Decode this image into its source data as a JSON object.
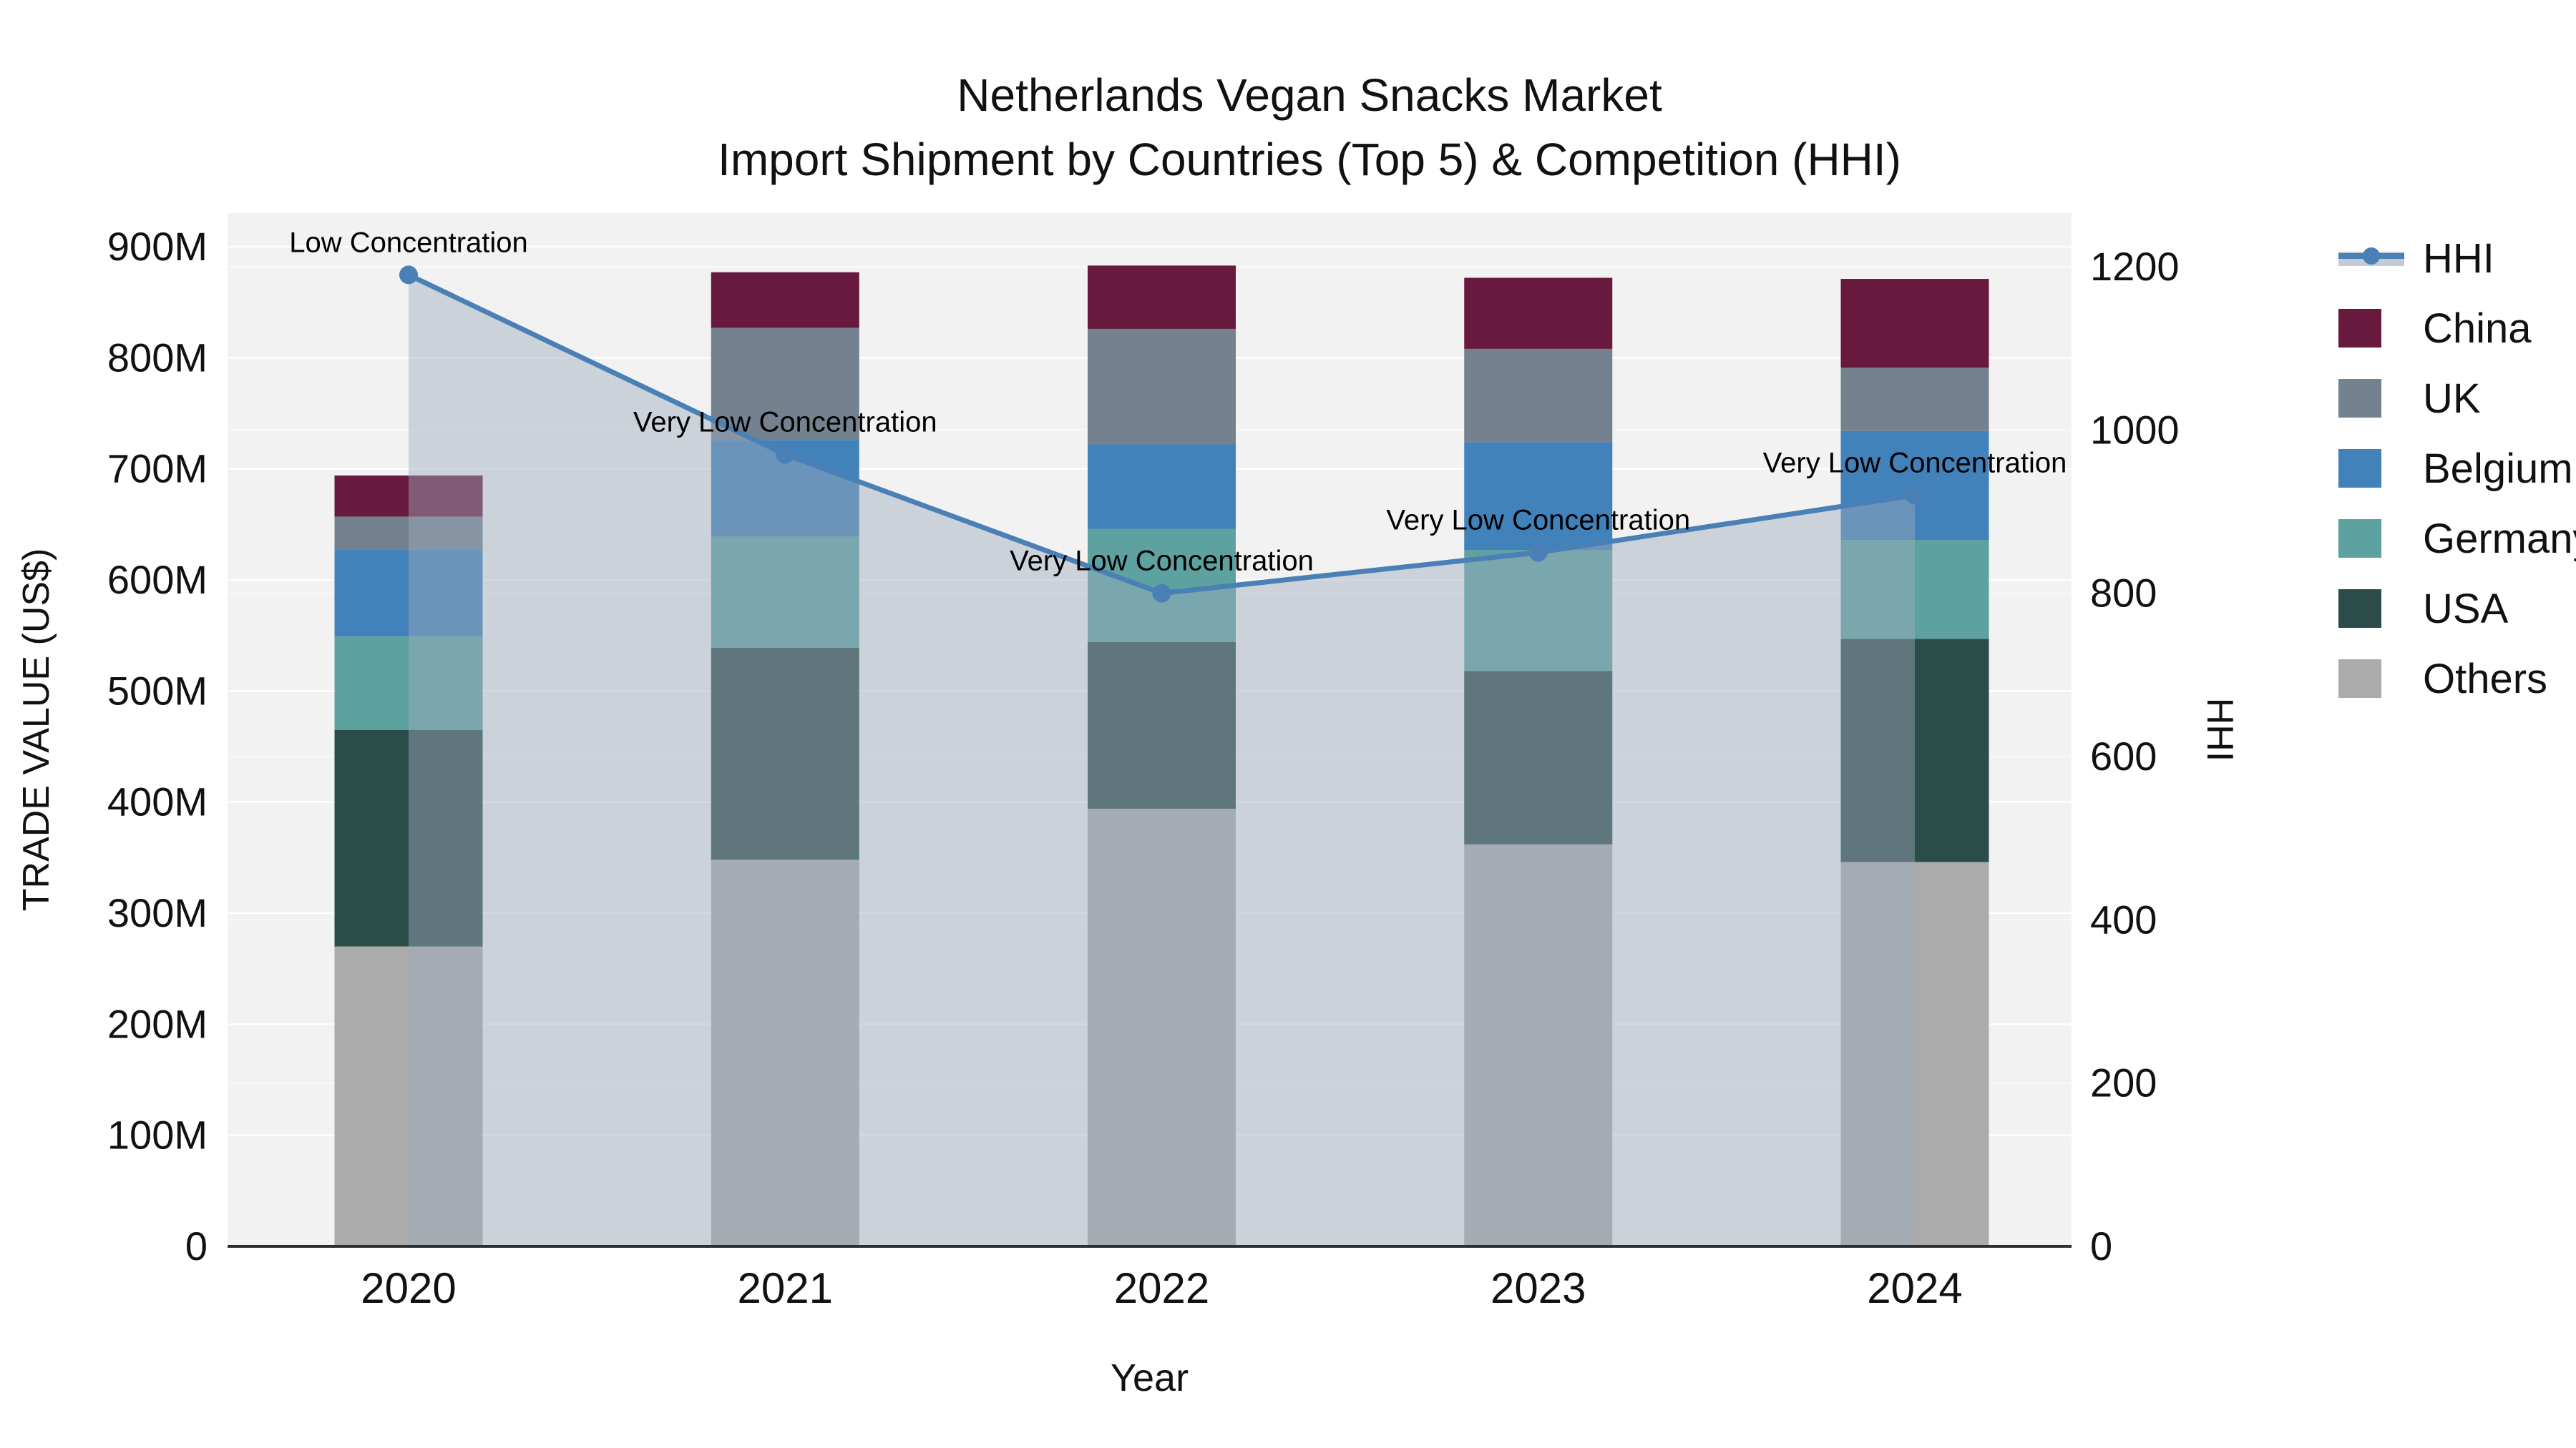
{
  "title": {
    "line1": "Netherlands Vegan Snacks Market",
    "line2": "Import Shipment by Countries (Top 5) & Competition (HHI)"
  },
  "legend": {
    "items": [
      {
        "label": "HHI",
        "type": "line",
        "color": "#4a80b5",
        "band_color": "#c3cbd7"
      },
      {
        "label": "China",
        "type": "box",
        "color": "#671a3d"
      },
      {
        "label": "UK",
        "type": "box",
        "color": "#74818f"
      },
      {
        "label": "Belgium",
        "type": "box",
        "color": "#4282ba"
      },
      {
        "label": "Germany",
        "type": "box",
        "color": "#5da2a1"
      },
      {
        "label": "USA",
        "type": "box",
        "color": "#2b4c48"
      },
      {
        "label": "Others",
        "type": "box",
        "color": "#ababab"
      }
    ]
  },
  "chart_data": {
    "type": "combo-stacked-bar-line",
    "categories": [
      "2020",
      "2021",
      "2022",
      "2023",
      "2024"
    ],
    "bar_unit": "M US$",
    "bar_series": [
      {
        "name": "Others",
        "color": "#ababab",
        "values": [
          270,
          348,
          394,
          362,
          346
        ]
      },
      {
        "name": "USA",
        "color": "#2b4c48",
        "values": [
          195,
          191,
          150,
          156,
          201
        ]
      },
      {
        "name": "Germany",
        "color": "#5da2a1",
        "values": [
          84,
          100,
          102,
          109,
          89
        ]
      },
      {
        "name": "Belgium",
        "color": "#4282ba",
        "values": [
          78,
          87,
          76,
          97,
          98
        ]
      },
      {
        "name": "UK",
        "color": "#74818f",
        "values": [
          30,
          101,
          104,
          84,
          57
        ]
      },
      {
        "name": "China",
        "color": "#671a3d",
        "values": [
          37,
          50,
          57,
          64,
          80
        ]
      }
    ],
    "line_series": {
      "name": "HHI",
      "color": "#4a80b5",
      "area_fill": "rgba(158,170,188,0.45)",
      "values": [
        1190,
        970,
        800,
        850,
        920
      ]
    },
    "annotations": [
      {
        "category": "2020",
        "text": "Low Concentration"
      },
      {
        "category": "2021",
        "text": "Very Low Concentration"
      },
      {
        "category": "2022",
        "text": "Very Low Concentration"
      },
      {
        "category": "2023",
        "text": "Very Low Concentration"
      },
      {
        "category": "2024",
        "text": "Very Low Concentration"
      }
    ],
    "xlabel": "Year",
    "ylabel_left": "TRADE VALUE (US$)",
    "ylabel_right": "HHI",
    "y_left_ticks": [
      {
        "v": 0,
        "label": "0"
      },
      {
        "v": 100,
        "label": "100M"
      },
      {
        "v": 200,
        "label": "200M"
      },
      {
        "v": 300,
        "label": "300M"
      },
      {
        "v": 400,
        "label": "400M"
      },
      {
        "v": 500,
        "label": "500M"
      },
      {
        "v": 600,
        "label": "600M"
      },
      {
        "v": 700,
        "label": "700M"
      },
      {
        "v": 800,
        "label": "800M"
      },
      {
        "v": 900,
        "label": "900M"
      }
    ],
    "y_right_ticks": [
      {
        "v": 0,
        "label": "0"
      },
      {
        "v": 200,
        "label": "200"
      },
      {
        "v": 400,
        "label": "400"
      },
      {
        "v": 600,
        "label": "600"
      },
      {
        "v": 800,
        "label": "800"
      },
      {
        "v": 1000,
        "label": "1000"
      },
      {
        "v": 1200,
        "label": "1200"
      }
    ],
    "ylim_left": [
      0,
      930
    ],
    "ylim_right": [
      0,
      1255
    ],
    "grid": true,
    "legend_position": "right",
    "plot_bg": "#f2f2f3"
  }
}
